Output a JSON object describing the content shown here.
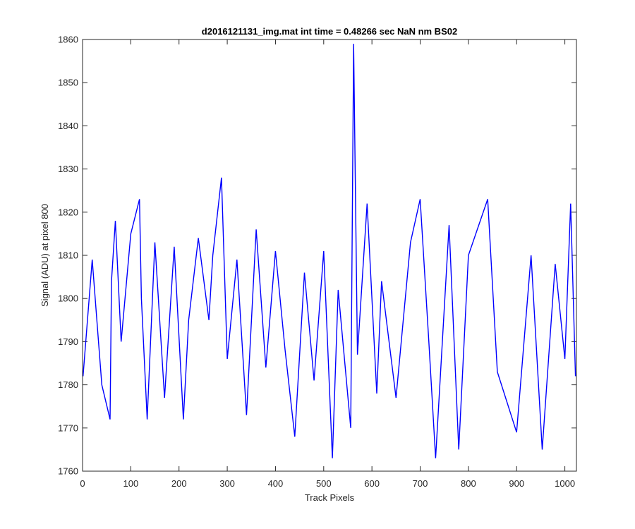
{
  "chart_data": {
    "type": "line",
    "title": "d2016121131_img.mat int time = 0.48266 sec  NaN nm BS02",
    "xlabel": "Track Pixels",
    "ylabel": "Signal (ADU) at pixel 800",
    "xlim": [
      0,
      1024
    ],
    "ylim": [
      1760,
      1860
    ],
    "x_ticks": [
      0,
      100,
      200,
      300,
      400,
      500,
      600,
      700,
      800,
      900,
      1000
    ],
    "y_ticks": [
      1760,
      1770,
      1780,
      1790,
      1800,
      1810,
      1820,
      1830,
      1840,
      1850,
      1860
    ],
    "grid": false,
    "series": [
      {
        "color": "#0000ff",
        "x": [
          1,
          20,
          40,
          57,
          60,
          68,
          80,
          100,
          118,
          122,
          134,
          150,
          170,
          190,
          209,
          220,
          240,
          262,
          270,
          288,
          300,
          320,
          340,
          360,
          380,
          400,
          420,
          440,
          460,
          480,
          500,
          518,
          530,
          556,
          562,
          570,
          590,
          610,
          620,
          650,
          680,
          700,
          718,
          732,
          760,
          780,
          800,
          840,
          860,
          900,
          930,
          953,
          980,
          1000,
          1012,
          1022
        ],
        "values": [
          1782,
          1809,
          1780,
          1772,
          1804,
          1818,
          1790,
          1815,
          1823,
          1800,
          1772,
          1813,
          1777,
          1812,
          1772,
          1795,
          1814,
          1795,
          1810,
          1828,
          1786,
          1809,
          1773,
          1816,
          1784,
          1811,
          1788,
          1768,
          1806,
          1781,
          1811,
          1763,
          1802,
          1770,
          1859,
          1787,
          1822,
          1778,
          1804,
          1777,
          1813,
          1823,
          1790,
          1763,
          1817,
          1765,
          1810,
          1823,
          1783,
          1769,
          1810,
          1765,
          1808,
          1786,
          1822,
          1782
        ]
      }
    ]
  }
}
